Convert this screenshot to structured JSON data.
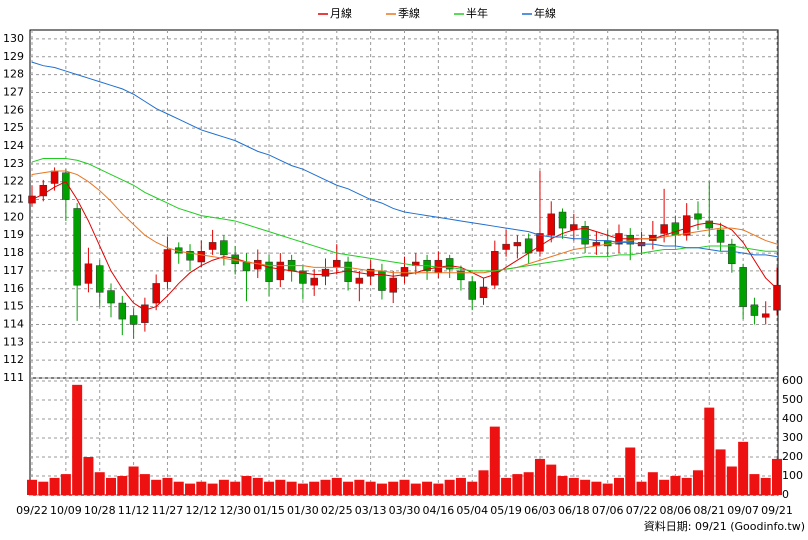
{
  "chart_data": [
    {
      "type": "candlestick",
      "up_color": "#e00000",
      "down_color": "#00a000",
      "open": [
        120.8,
        121.2,
        121.9,
        122.5,
        120.5,
        116.3,
        117.3,
        115.9,
        115.2,
        114.5,
        114.1,
        115.2,
        116.4,
        118.3,
        118.1,
        117.5,
        118.2,
        118.7,
        117.9,
        117.5,
        117.1,
        117.5,
        116.5,
        117.6,
        117.0,
        116.2,
        116.7,
        117.2,
        117.5,
        116.3,
        116.7,
        117.0,
        115.8,
        116.7,
        117.3,
        117.6,
        116.9,
        117.7,
        117.0,
        116.4,
        115.5,
        116.2,
        118.2,
        118.4,
        118.8,
        118.1,
        119.0,
        120.3,
        119.3,
        119.5,
        118.4,
        118.7,
        118.5,
        119.0,
        118.4,
        118.7,
        119.1,
        119.7,
        119.0,
        120.2,
        119.8,
        119.3,
        118.5,
        117.2,
        115.1,
        114.4,
        114.8
      ],
      "high": [
        121.8,
        122.1,
        122.8,
        122.7,
        120.8,
        118.3,
        117.6,
        116.3,
        115.6,
        114.9,
        115.5,
        116.8,
        118.9,
        118.6,
        118.5,
        118.7,
        119.3,
        119.0,
        118.4,
        118.0,
        118.2,
        117.9,
        118.0,
        117.9,
        117.3,
        117.1,
        117.7,
        118.5,
        117.8,
        117.0,
        117.6,
        117.4,
        117.0,
        117.8,
        118.0,
        117.9,
        118.1,
        117.9,
        117.3,
        116.7,
        116.6,
        118.7,
        119.3,
        119.0,
        119.1,
        122.6,
        120.9,
        120.5,
        120.2,
        119.8,
        119.2,
        119.3,
        119.6,
        119.4,
        119.2,
        119.8,
        121.6,
        120.1,
        120.8,
        120.9,
        122.0,
        119.7,
        118.8,
        117.4,
        115.5,
        115.3,
        117.2
      ],
      "low": [
        120.6,
        120.9,
        121.5,
        119.8,
        114.2,
        115.8,
        115.0,
        114.4,
        113.4,
        113.2,
        113.6,
        114.8,
        116.0,
        117.4,
        117.0,
        117.2,
        117.9,
        117.3,
        116.8,
        115.3,
        116.6,
        115.6,
        116.1,
        116.4,
        115.4,
        115.6,
        116.2,
        116.8,
        115.9,
        115.3,
        116.2,
        115.4,
        115.2,
        116.3,
        116.8,
        116.5,
        116.6,
        116.6,
        115.9,
        114.8,
        115.1,
        116.0,
        117.8,
        117.7,
        117.4,
        117.8,
        118.6,
        118.8,
        118.7,
        118.0,
        117.9,
        117.8,
        118.0,
        117.6,
        117.9,
        118.2,
        118.6,
        118.4,
        118.7,
        119.3,
        118.9,
        118.1,
        116.9,
        114.3,
        114.0,
        114.0,
        114.5
      ],
      "close": [
        121.2,
        121.8,
        122.6,
        121.0,
        116.2,
        117.4,
        115.8,
        115.2,
        114.3,
        114.0,
        115.1,
        116.3,
        118.2,
        118.0,
        117.6,
        118.1,
        118.6,
        117.9,
        117.4,
        117.0,
        117.6,
        116.4,
        117.5,
        117.0,
        116.3,
        116.6,
        117.1,
        117.6,
        116.4,
        116.6,
        117.1,
        115.9,
        116.6,
        117.2,
        117.5,
        117.0,
        117.6,
        117.1,
        116.5,
        115.4,
        116.1,
        118.1,
        118.5,
        118.6,
        118.0,
        119.1,
        120.2,
        119.4,
        119.6,
        118.5,
        118.6,
        118.4,
        119.1,
        118.5,
        118.6,
        119.0,
        119.6,
        119.0,
        120.1,
        119.9,
        119.4,
        118.6,
        117.4,
        115.0,
        114.5,
        114.6,
        116.2
      ],
      "series": [
        {
          "name": "月線",
          "color": "#e00000",
          "values": [
            121.0,
            121.3,
            121.7,
            122.0,
            121.0,
            119.8,
            118.4,
            117.0,
            116.0,
            115.2,
            114.8,
            115.0,
            115.6,
            116.3,
            116.9,
            117.3,
            117.6,
            117.8,
            117.7,
            117.5,
            117.4,
            117.2,
            117.1,
            117.0,
            116.9,
            116.8,
            116.8,
            116.9,
            117.0,
            116.9,
            116.8,
            116.8,
            116.7,
            116.8,
            116.9,
            117.1,
            117.2,
            117.3,
            117.2,
            116.9,
            116.6,
            116.8,
            117.2,
            117.6,
            118.0,
            118.4,
            118.8,
            119.1,
            119.3,
            119.4,
            119.2,
            119.0,
            118.8,
            118.8,
            118.8,
            118.8,
            119.0,
            119.2,
            119.4,
            119.6,
            119.7,
            119.6,
            119.3,
            118.6,
            117.6,
            116.6,
            116.0
          ]
        },
        {
          "name": "季線",
          "color": "#e87722",
          "values": [
            122.4,
            122.5,
            122.6,
            122.6,
            122.4,
            122.0,
            121.5,
            120.9,
            120.2,
            119.6,
            119.0,
            118.6,
            118.3,
            118.1,
            118.0,
            117.9,
            117.8,
            117.7,
            117.6,
            117.5,
            117.4,
            117.3,
            117.3,
            117.3,
            117.3,
            117.2,
            117.2,
            117.2,
            117.2,
            117.1,
            117.0,
            117.0,
            116.9,
            116.9,
            116.9,
            116.9,
            116.9,
            116.9,
            116.9,
            116.9,
            116.9,
            117.0,
            117.1,
            117.2,
            117.4,
            117.6,
            117.8,
            118.0,
            118.2,
            118.3,
            118.4,
            118.5,
            118.6,
            118.7,
            118.8,
            118.8,
            118.9,
            119.0,
            119.1,
            119.2,
            119.3,
            119.4,
            119.4,
            119.3,
            119.0,
            118.7,
            118.5
          ]
        },
        {
          "name": "半年",
          "color": "#22cc22",
          "values": [
            123.1,
            123.3,
            123.3,
            123.3,
            123.2,
            123.0,
            122.7,
            122.4,
            122.1,
            121.8,
            121.4,
            121.1,
            120.8,
            120.5,
            120.3,
            120.1,
            120.0,
            119.9,
            119.8,
            119.6,
            119.4,
            119.2,
            119.0,
            118.8,
            118.6,
            118.4,
            118.2,
            118.0,
            117.9,
            117.8,
            117.7,
            117.6,
            117.5,
            117.4,
            117.3,
            117.3,
            117.2,
            117.2,
            117.1,
            117.0,
            117.0,
            117.0,
            117.1,
            117.2,
            117.3,
            117.4,
            117.5,
            117.6,
            117.7,
            117.8,
            117.8,
            117.8,
            117.9,
            117.9,
            118.0,
            118.1,
            118.2,
            118.2,
            118.3,
            118.3,
            118.4,
            118.4,
            118.4,
            118.3,
            118.2,
            118.1,
            118.1
          ]
        },
        {
          "name": "年線",
          "color": "#1f6fd0",
          "values": [
            128.7,
            128.5,
            128.4,
            128.2,
            128.0,
            127.8,
            127.6,
            127.4,
            127.2,
            126.9,
            126.5,
            126.1,
            125.8,
            125.5,
            125.2,
            124.9,
            124.7,
            124.5,
            124.3,
            124.0,
            123.7,
            123.5,
            123.2,
            122.9,
            122.7,
            122.4,
            122.1,
            121.8,
            121.6,
            121.3,
            121.0,
            120.8,
            120.5,
            120.3,
            120.2,
            120.1,
            120.0,
            119.9,
            119.8,
            119.7,
            119.6,
            119.5,
            119.4,
            119.3,
            119.2,
            119.0,
            118.9,
            118.9,
            118.8,
            118.8,
            118.7,
            118.7,
            118.6,
            118.6,
            118.5,
            118.5,
            118.4,
            118.4,
            118.3,
            118.3,
            118.2,
            118.1,
            118.1,
            118.0,
            117.9,
            117.9,
            117.8
          ]
        }
      ],
      "ylim": [
        111,
        130.5
      ],
      "yticks": [
        111,
        112,
        113,
        114,
        115,
        116,
        117,
        118,
        119,
        120,
        121,
        122,
        123,
        124,
        125,
        126,
        127,
        128,
        129,
        130
      ],
      "grid": true
    },
    {
      "type": "bar",
      "color": "#ee1111",
      "categories": [
        "09/22",
        null,
        null,
        "10/09",
        null,
        null,
        "10/28",
        null,
        null,
        "11/12",
        null,
        null,
        "11/27",
        null,
        null,
        "12/12",
        null,
        null,
        "12/30",
        null,
        null,
        "01/15",
        null,
        null,
        "01/30",
        null,
        null,
        "02/25",
        null,
        null,
        "03/13",
        null,
        null,
        "03/30",
        null,
        null,
        "04/16",
        null,
        null,
        "05/04",
        null,
        null,
        "05/19",
        null,
        null,
        "06/03",
        null,
        null,
        "06/18",
        null,
        null,
        "07/06",
        null,
        null,
        "07/22",
        null,
        null,
        "08/06",
        null,
        null,
        "08/21",
        null,
        null,
        "09/07",
        null,
        null,
        "09/21"
      ],
      "values": [
        80,
        70,
        90,
        110,
        580,
        200,
        120,
        90,
        100,
        150,
        110,
        80,
        90,
        70,
        60,
        70,
        60,
        80,
        70,
        100,
        90,
        70,
        80,
        70,
        60,
        70,
        80,
        90,
        70,
        80,
        70,
        60,
        70,
        80,
        60,
        70,
        60,
        80,
        90,
        70,
        130,
        360,
        90,
        110,
        120,
        190,
        160,
        100,
        90,
        80,
        70,
        60,
        90,
        250,
        70,
        120,
        80,
        100,
        90,
        130,
        460,
        240,
        150,
        280,
        110,
        90,
        190
      ],
      "ylim": [
        0,
        616
      ],
      "yticks": [
        0,
        100,
        200,
        300,
        400,
        500,
        600
      ],
      "grid": true,
      "source": "資料日期: 09/21 (Goodinfo.tw)"
    }
  ]
}
